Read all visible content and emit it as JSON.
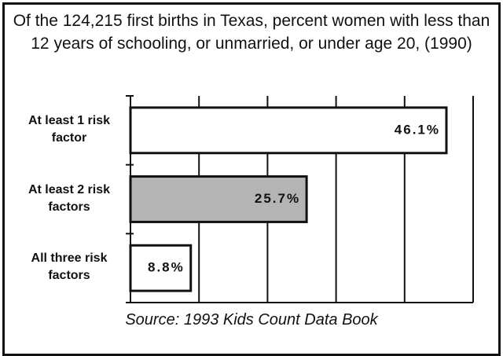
{
  "chart_data": {
    "type": "bar",
    "orientation": "horizontal",
    "title": "Of the 124,215 first births in Texas, percent women with less than 12 years of schooling, or unmarried, or under age 20, (1990)",
    "categories": [
      "At least 1 risk factor",
      "At least 2 risk factors",
      "All three risk factors"
    ],
    "values": [
      46.1,
      25.7,
      8.8
    ],
    "value_labels": [
      "46.1%",
      "25.7%",
      "8.8%"
    ],
    "colors": [
      "#ffffff",
      "#b4b4b4",
      "#ffffff"
    ],
    "xlim": [
      0,
      50
    ],
    "xticks": [
      0,
      10,
      20,
      30,
      40,
      50
    ],
    "grid": true,
    "source": "Source: 1993 Kids Count Data Book"
  }
}
